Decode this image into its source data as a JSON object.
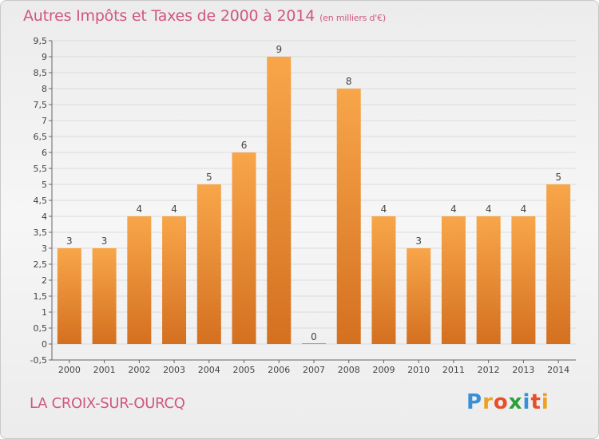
{
  "header": {
    "title": "Autres Impôts et Taxes de 2000 à 2014",
    "subtitle": "(en milliers d'€)"
  },
  "commune": "LA CROIX-SUR-OURCQ",
  "logo": {
    "letters": [
      "P",
      "r",
      "o",
      "x",
      "i",
      "t",
      "i"
    ],
    "colors": [
      "#3a8fd6",
      "#f0a020",
      "#e84e2a",
      "#2c9f3c",
      "#3a8fd6",
      "#e84e2a",
      "#f0a020"
    ]
  },
  "colors": {
    "bar_light": "#f8a64a",
    "bar_dark": "#d47020",
    "title": "#d0577f"
  },
  "chart_data": {
    "type": "bar",
    "title": "Autres Impôts et Taxes de 2000 à 2014",
    "categories": [
      "2000",
      "2001",
      "2002",
      "2003",
      "2004",
      "2005",
      "2006",
      "2007",
      "2008",
      "2009",
      "2010",
      "2011",
      "2012",
      "2013",
      "2014"
    ],
    "values": [
      3,
      3,
      4,
      4,
      5,
      6,
      9,
      0,
      8,
      4,
      3,
      4,
      4,
      4,
      5
    ],
    "data_labels": [
      "3",
      "3",
      "4",
      "4",
      "5",
      "6",
      "9",
      "0",
      "8",
      "4",
      "3",
      "4",
      "4",
      "4",
      "5"
    ],
    "yticks": [
      "-0,5",
      "0",
      "0,5",
      "1",
      "1,5",
      "2",
      "2,5",
      "3",
      "3,5",
      "4",
      "4,5",
      "5",
      "5,5",
      "6",
      "6,5",
      "7",
      "7,5",
      "8",
      "8,5",
      "9",
      "9,5"
    ],
    "ytick_values": [
      -0.5,
      0,
      0.5,
      1,
      1.5,
      2,
      2.5,
      3,
      3.5,
      4,
      4.5,
      5,
      5.5,
      6,
      6.5,
      7,
      7.5,
      8,
      8.5,
      9,
      9.5
    ],
    "ylim": [
      -0.5,
      9.5
    ],
    "grid": true,
    "legend": "none"
  }
}
